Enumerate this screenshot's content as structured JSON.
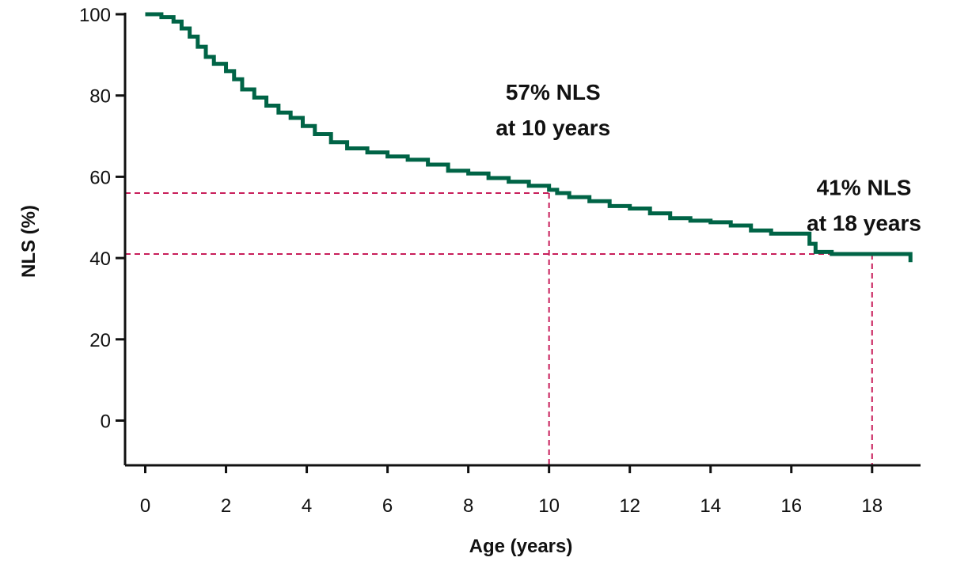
{
  "chart_data": {
    "type": "line",
    "xlabel": "Age (years)",
    "ylabel": "NLS (%)",
    "xlim": [
      -0.5,
      19.2
    ],
    "ylim": [
      -11,
      100
    ],
    "x_ticks": [
      0,
      2,
      4,
      6,
      8,
      10,
      12,
      14,
      16,
      18
    ],
    "y_ticks": [
      0,
      20,
      40,
      60,
      80,
      100
    ],
    "grid": false,
    "colors": {
      "series": "#006446",
      "reference": "#c81e5a",
      "axis": "#111111"
    },
    "series": [
      {
        "name": "",
        "step": true,
        "x": [
          0,
          0.4,
          0.7,
          0.9,
          1.1,
          1.3,
          1.5,
          1.7,
          2.0,
          2.2,
          2.4,
          2.7,
          3.0,
          3.3,
          3.6,
          3.9,
          4.2,
          4.6,
          5.0,
          5.5,
          6.0,
          6.5,
          7.0,
          7.5,
          8.0,
          8.5,
          9.0,
          9.5,
          10.0,
          10.2,
          10.5,
          11.0,
          11.5,
          12.0,
          12.5,
          13.0,
          13.5,
          14.0,
          14.5,
          15.0,
          15.5,
          16.0,
          16.3,
          16.45,
          16.6,
          17.0,
          17.5,
          18.0,
          18.5,
          18.95
        ],
        "y": [
          100,
          99.3,
          98.2,
          96.5,
          94.5,
          92,
          89.5,
          87.8,
          86,
          84,
          81.5,
          79.5,
          77.5,
          75.8,
          74.5,
          72.5,
          70.5,
          68.5,
          67,
          66,
          65,
          64.2,
          63,
          61.5,
          60.8,
          59.7,
          58.8,
          57.8,
          56.8,
          56,
          55,
          54,
          52.8,
          52.2,
          51,
          49.8,
          49.2,
          48.8,
          48,
          46.8,
          46,
          46,
          46,
          43.5,
          41.5,
          41,
          41,
          41,
          41,
          39
        ]
      }
    ],
    "reference_lines": [
      {
        "x": 10,
        "y": 56
      },
      {
        "x": 18,
        "y": 41
      }
    ],
    "annotations": [
      {
        "lines": [
          "57% NLS",
          "at 10 years"
        ],
        "x": 10.1,
        "y": 79
      },
      {
        "lines": [
          "41% NLS",
          "at 18 years"
        ],
        "x": 17.8,
        "y": 55.5
      }
    ]
  }
}
